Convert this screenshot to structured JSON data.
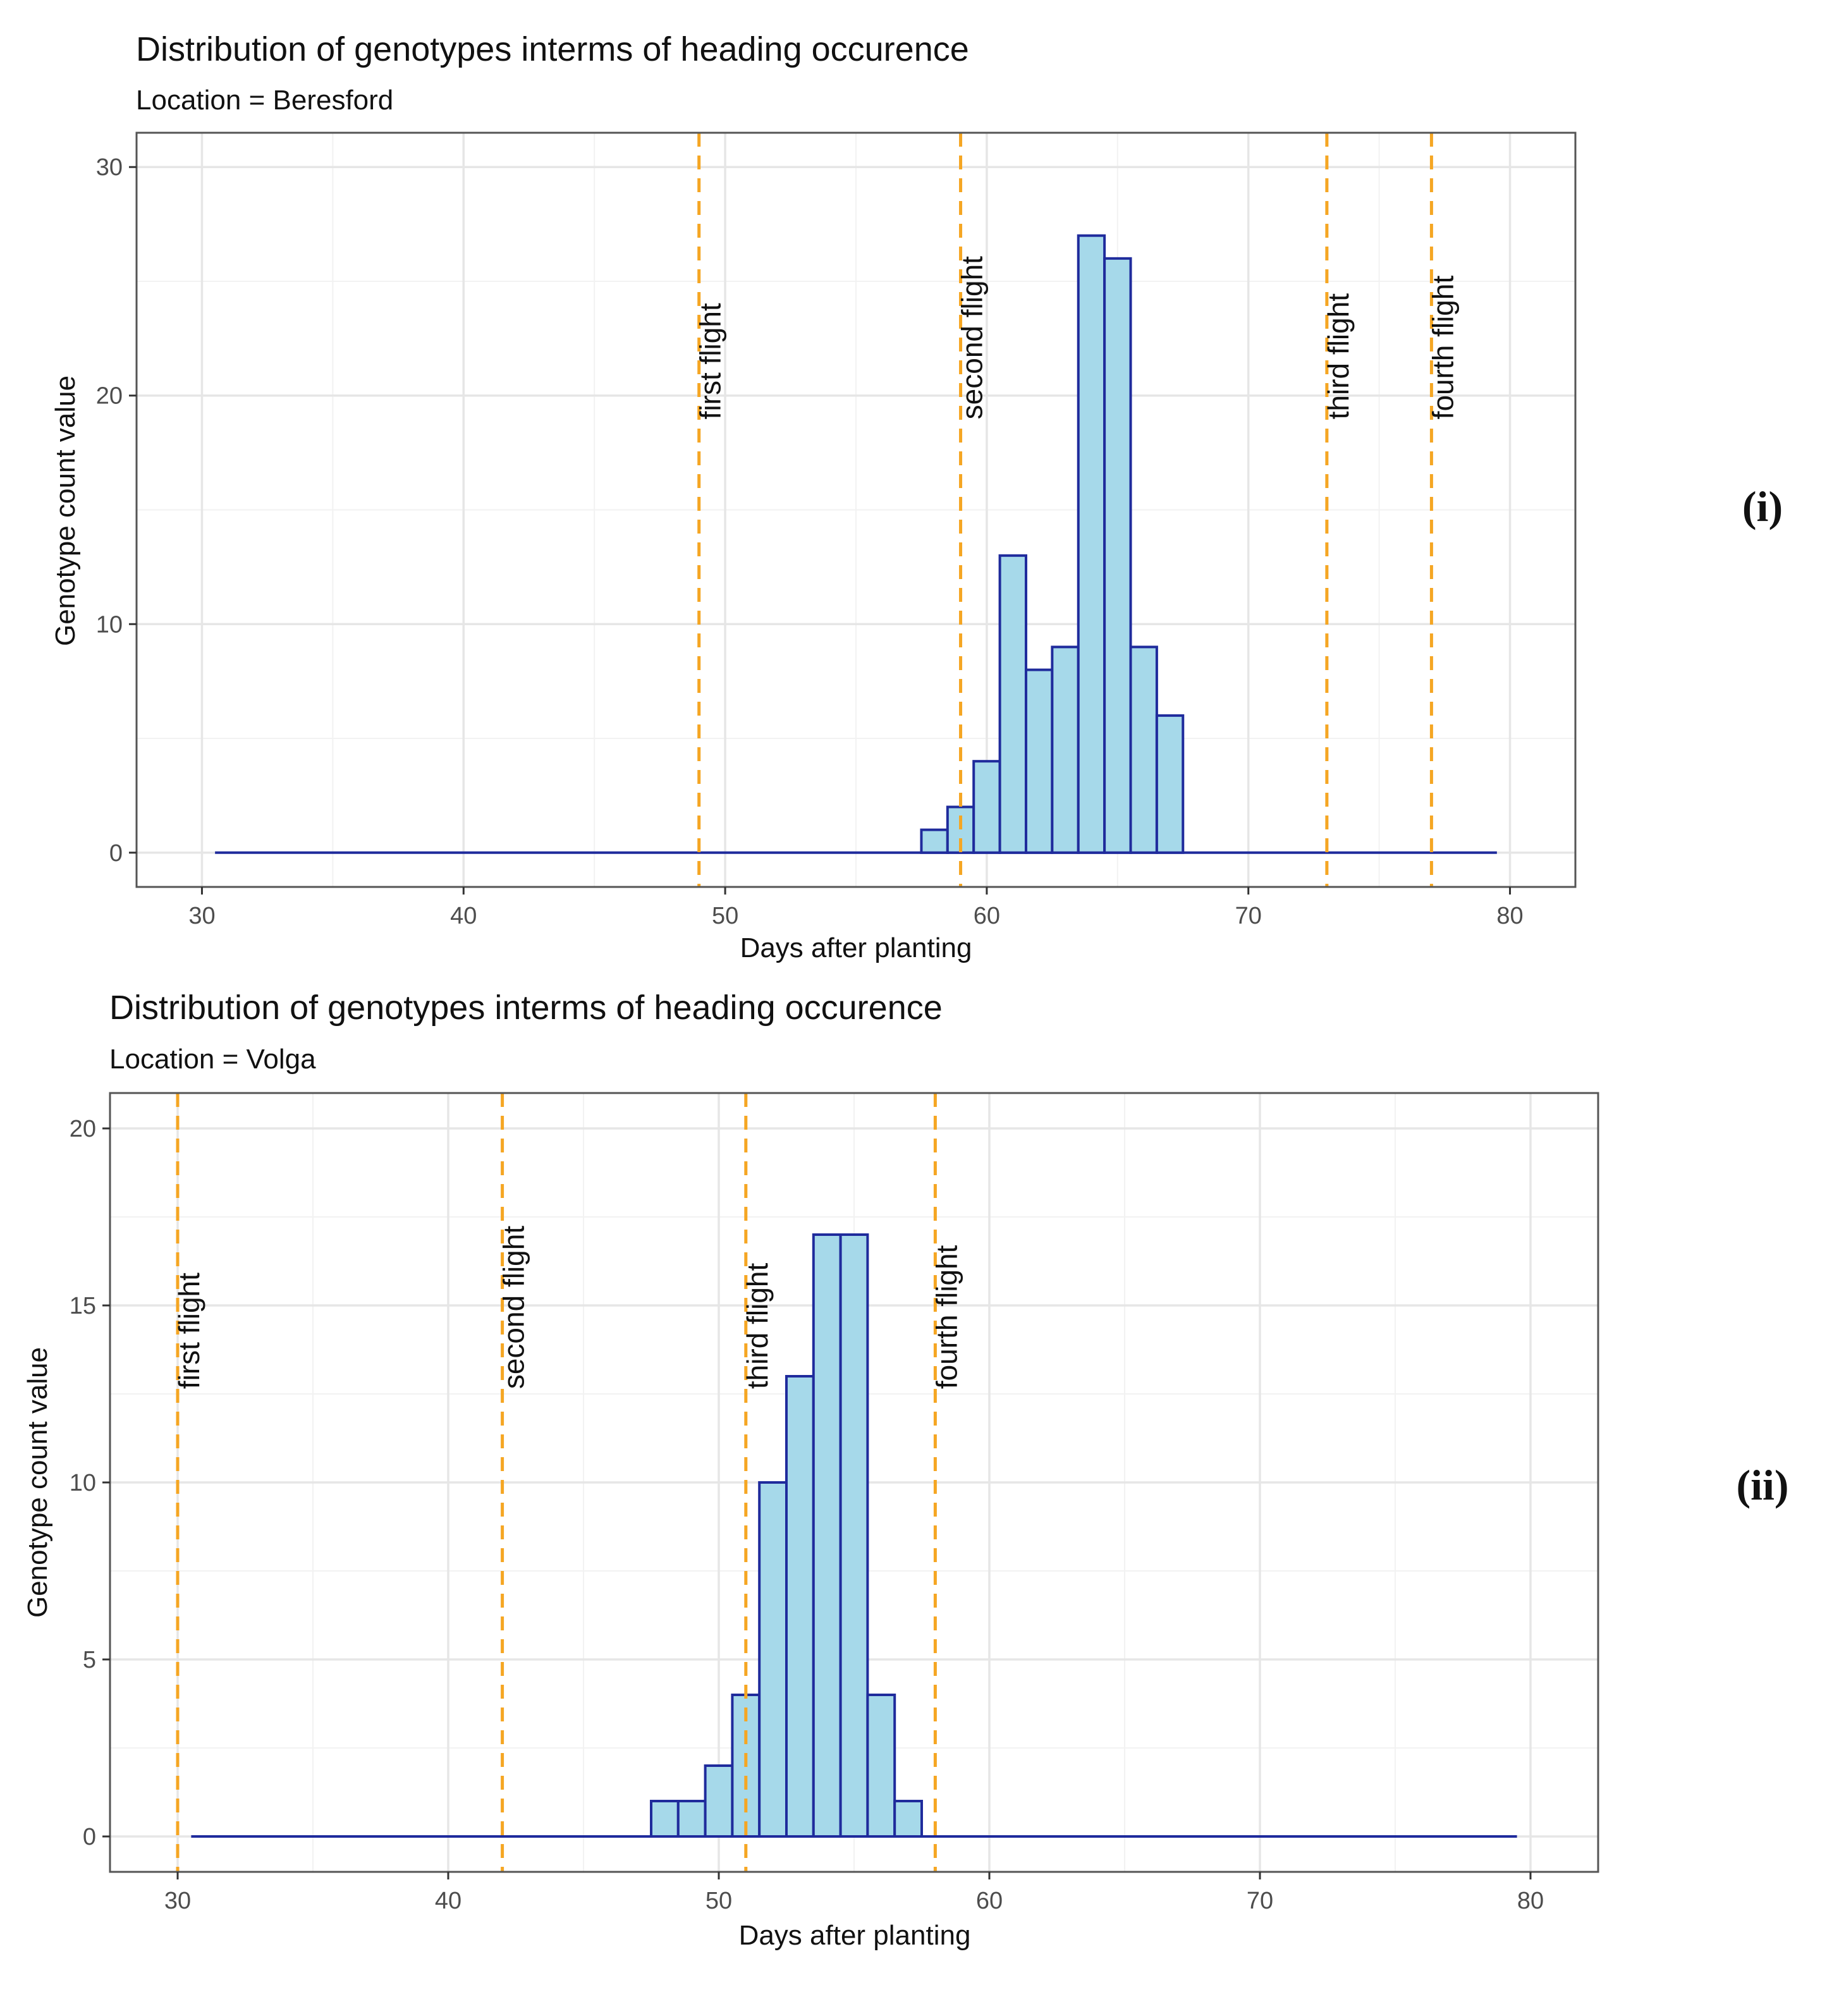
{
  "chart_data": [
    {
      "type": "bar",
      "panel_label": "(i)",
      "title": "Distribution of genotypes interms of heading occurence",
      "subtitle": "Location = Beresford",
      "xlabel": "Days after planting",
      "ylabel": "Genotype count value",
      "xlim": [
        27.5,
        82.5
      ],
      "ylim": [
        -1.5,
        31.5
      ],
      "xticks": [
        30,
        40,
        50,
        60,
        70,
        80
      ],
      "yticks": [
        0,
        10,
        20,
        30
      ],
      "grid": true,
      "baseline_range": [
        30.5,
        79.5
      ],
      "bins": [
        {
          "x": 58,
          "value": 1
        },
        {
          "x": 59,
          "value": 2
        },
        {
          "x": 60,
          "value": 4
        },
        {
          "x": 61,
          "value": 13
        },
        {
          "x": 62,
          "value": 8
        },
        {
          "x": 63,
          "value": 9
        },
        {
          "x": 64,
          "value": 27
        },
        {
          "x": 65,
          "value": 26
        },
        {
          "x": 66,
          "value": 9
        },
        {
          "x": 67,
          "value": 6
        }
      ],
      "vlines": [
        {
          "x": 49,
          "label": "first flight"
        },
        {
          "x": 59,
          "label": "second flight"
        },
        {
          "x": 73,
          "label": "third flight"
        },
        {
          "x": 77,
          "label": "fourth flight"
        }
      ],
      "colors": {
        "bar_fill": "#a6d9ea",
        "bar_edge": "#1f2b9c",
        "vline": "#f5a623"
      }
    },
    {
      "type": "bar",
      "panel_label": "(ii)",
      "title": "Distribution of genotypes interms of heading occurence",
      "subtitle": "Location = Volga",
      "xlabel": "Days after planting",
      "ylabel": "Genotype count value",
      "xlim": [
        27.5,
        82.5
      ],
      "ylim": [
        -1,
        21
      ],
      "xticks": [
        30,
        40,
        50,
        60,
        70,
        80
      ],
      "yticks": [
        0,
        5,
        10,
        15,
        20
      ],
      "grid": true,
      "baseline_range": [
        30.5,
        79.5
      ],
      "bins": [
        {
          "x": 48,
          "value": 1
        },
        {
          "x": 49,
          "value": 1
        },
        {
          "x": 50,
          "value": 2
        },
        {
          "x": 51,
          "value": 4
        },
        {
          "x": 52,
          "value": 10
        },
        {
          "x": 53,
          "value": 13
        },
        {
          "x": 54,
          "value": 17
        },
        {
          "x": 55,
          "value": 17
        },
        {
          "x": 56,
          "value": 4
        },
        {
          "x": 57,
          "value": 1
        }
      ],
      "vlines": [
        {
          "x": 30,
          "label": "first flight"
        },
        {
          "x": 42,
          "label": "second flight"
        },
        {
          "x": 51,
          "label": "third flight"
        },
        {
          "x": 58,
          "label": "fourth flight"
        }
      ],
      "colors": {
        "bar_fill": "#a6d9ea",
        "bar_edge": "#1f2b9c",
        "vline": "#f5a623"
      }
    }
  ]
}
